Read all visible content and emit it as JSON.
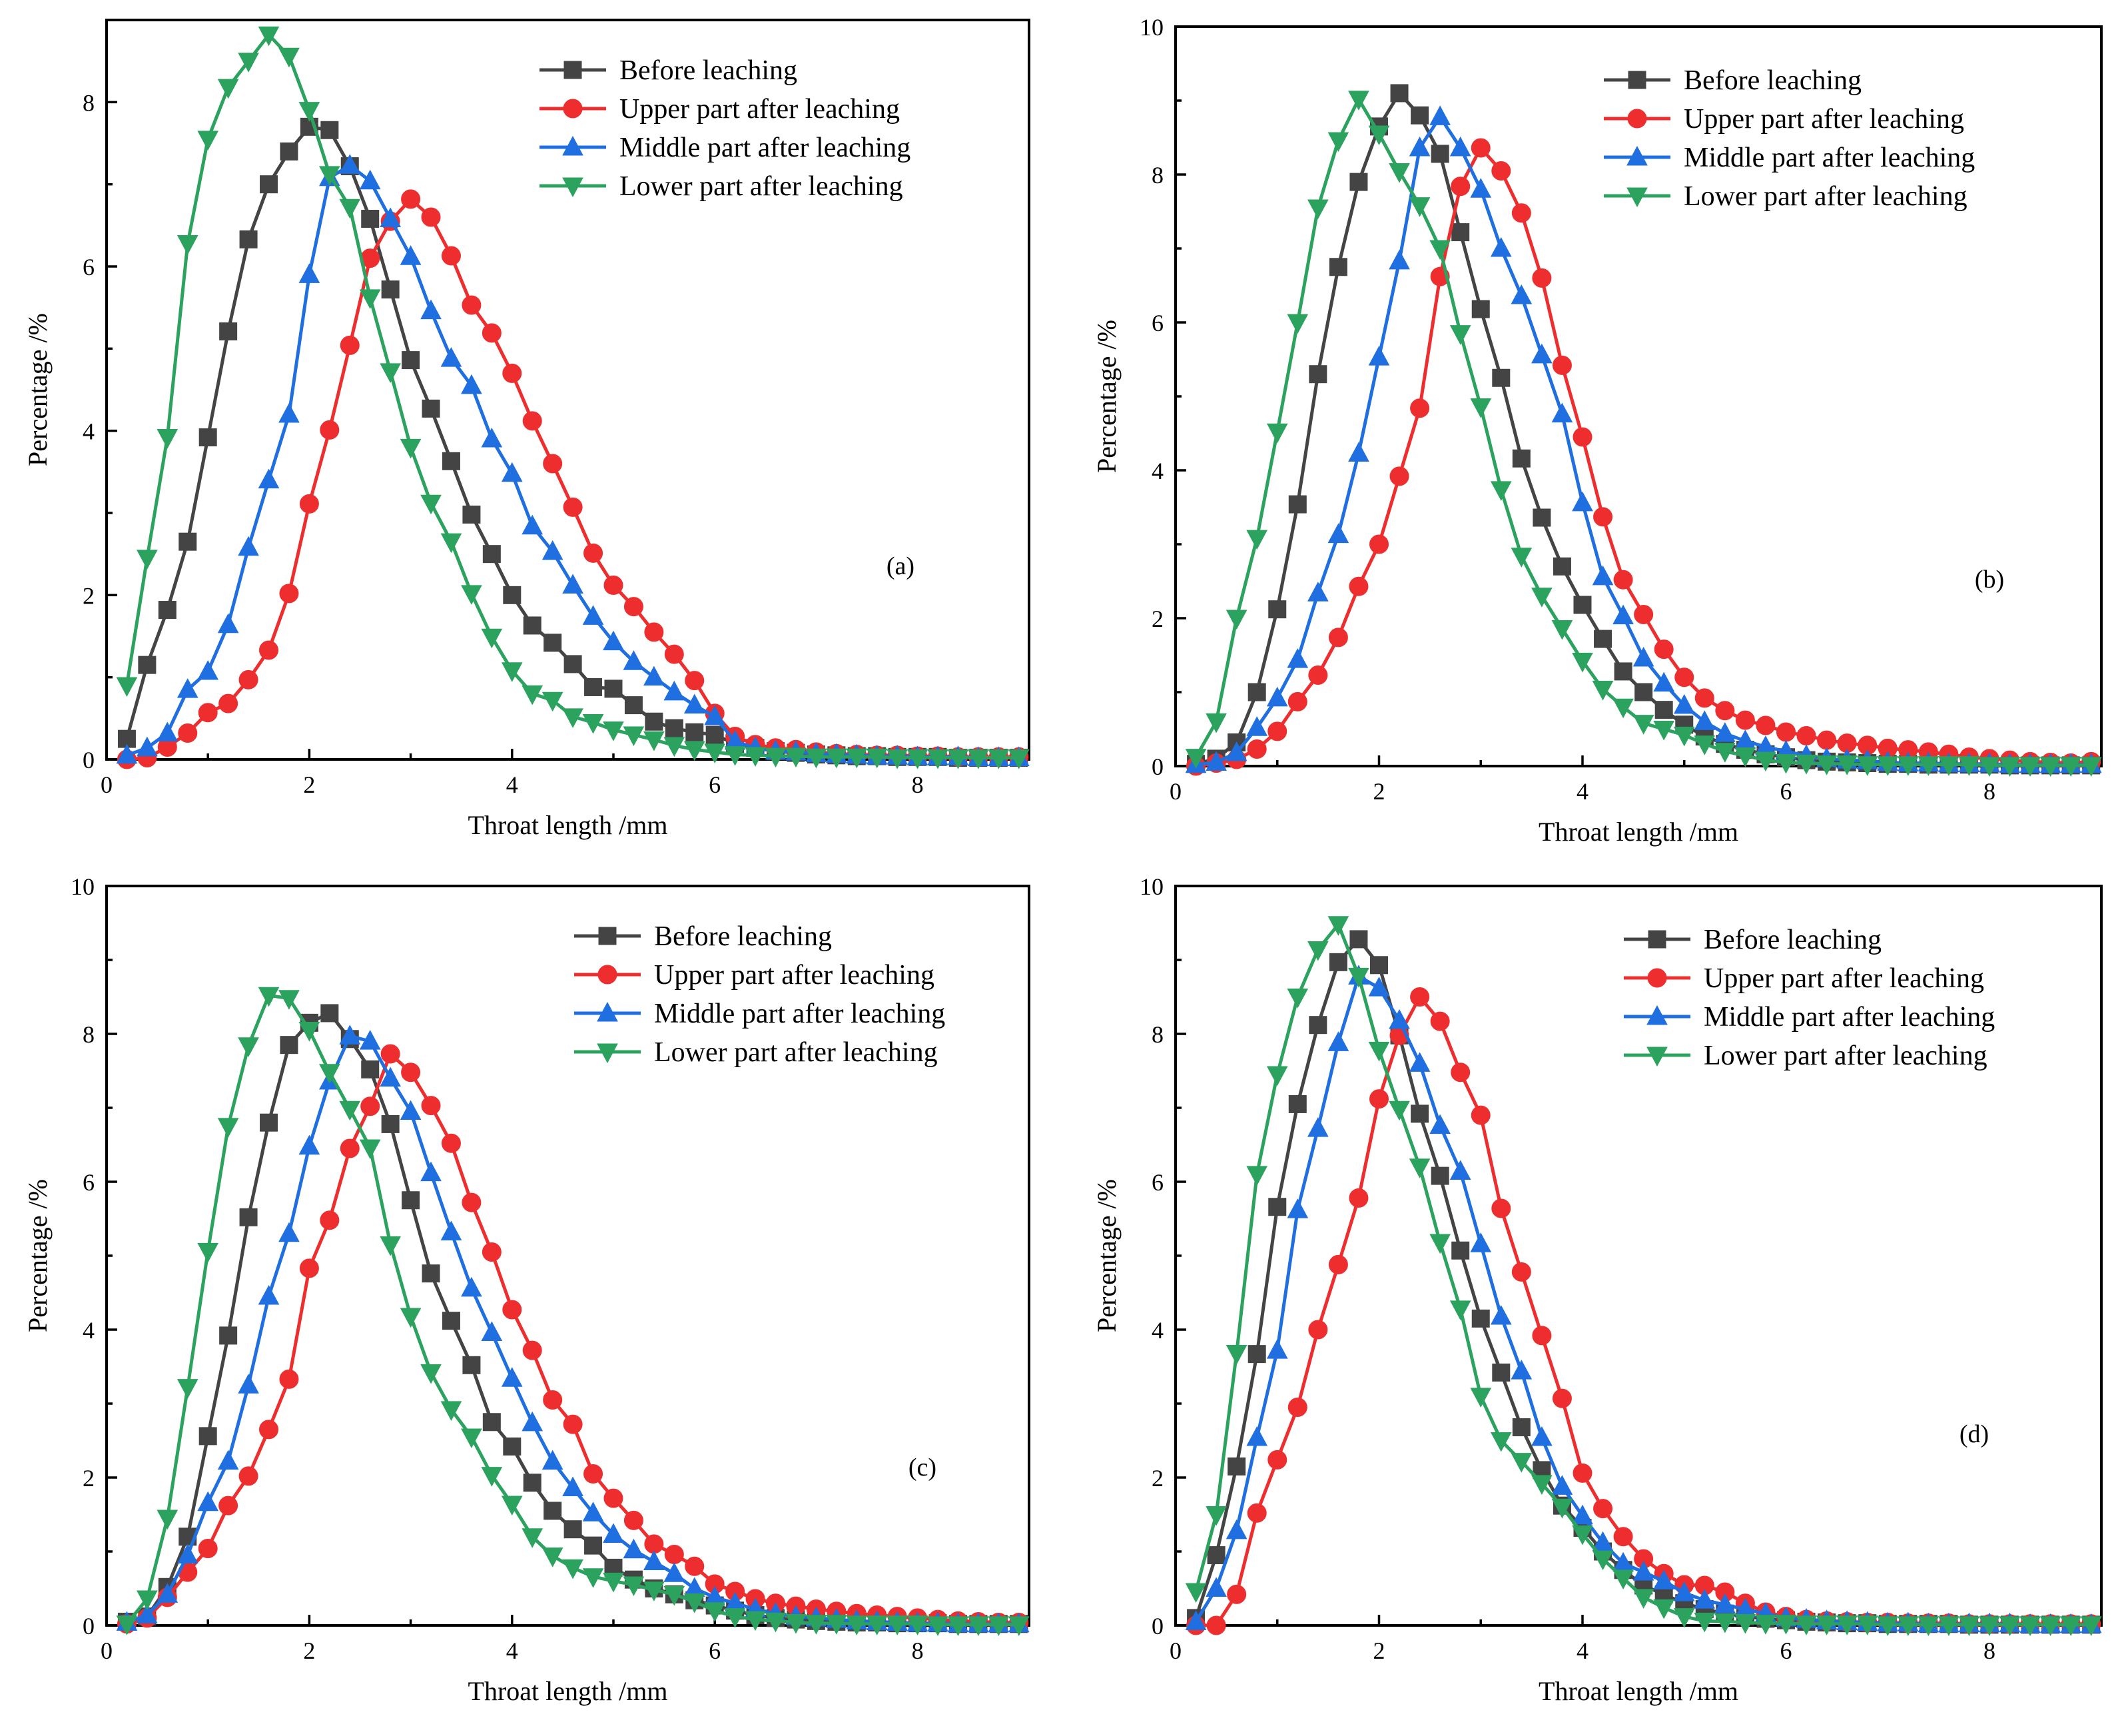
{
  "colors": {
    "Before leaching": "#444444",
    "Upper part after leaching": "#ee2e2e",
    "Middle part after leaching": "#1f6fe0",
    "Lower part after leaching": "#2ba35f"
  },
  "markers": {
    "Before leaching": "square",
    "Upper part after leaching": "circle",
    "Middle part after leaching": "triangle-up",
    "Lower part after leaching": "triangle-down"
  },
  "chart_data": [
    {
      "type": "line",
      "panel_label": "(a)",
      "xlabel": "Throat length /mm",
      "ylabel": "Percentage /%",
      "xlim": [
        0,
        9.1
      ],
      "ylim": [
        0,
        9
      ],
      "xticks": [
        0,
        2,
        4,
        6,
        8
      ],
      "yticks": [
        0,
        2,
        4,
        6,
        8
      ],
      "x": [
        0.2,
        0.4,
        0.6,
        0.8,
        1.0,
        1.2,
        1.4,
        1.6,
        1.8,
        2.0,
        2.2,
        2.4,
        2.6,
        2.8,
        3.0,
        3.2,
        3.4,
        3.6,
        3.8,
        4.0,
        4.2,
        4.4,
        4.6,
        4.8,
        5.0,
        5.2,
        5.4,
        5.6,
        5.8,
        6.0,
        6.2,
        6.4,
        6.6,
        6.8,
        7.0,
        7.2,
        7.4,
        7.6,
        7.8,
        8.0,
        8.2,
        8.4,
        8.6,
        8.8,
        9.0
      ],
      "series": [
        {
          "name": "Before leaching",
          "values": [
            0.25,
            1.15,
            1.82,
            2.65,
            3.92,
            5.21,
            6.33,
            7.0,
            7.4,
            7.7,
            7.66,
            7.22,
            6.58,
            5.72,
            4.86,
            4.27,
            3.63,
            2.98,
            2.5,
            2.0,
            1.63,
            1.42,
            1.16,
            0.88,
            0.86,
            0.66,
            0.46,
            0.38,
            0.33,
            0.3,
            0.19,
            0.14,
            0.1,
            0.08,
            0.06,
            0.05,
            0.04,
            0.04,
            0.03,
            0.03,
            0.03,
            0.02,
            0.02,
            0.02,
            0.02
          ]
        },
        {
          "name": "Upper part after leaching",
          "values": [
            0.0,
            0.02,
            0.15,
            0.32,
            0.57,
            0.68,
            0.97,
            1.33,
            2.02,
            3.11,
            4.01,
            5.04,
            6.1,
            6.55,
            6.82,
            6.6,
            6.13,
            5.53,
            5.19,
            4.7,
            4.12,
            3.6,
            3.07,
            2.51,
            2.12,
            1.86,
            1.55,
            1.28,
            0.96,
            0.56,
            0.28,
            0.18,
            0.14,
            0.12,
            0.09,
            0.07,
            0.06,
            0.05,
            0.05,
            0.04,
            0.04,
            0.03,
            0.03,
            0.03,
            0.03
          ]
        },
        {
          "name": "Middle part after leaching",
          "values": [
            0.05,
            0.14,
            0.32,
            0.85,
            1.07,
            1.64,
            2.58,
            3.4,
            4.2,
            5.9,
            7.08,
            7.23,
            7.04,
            6.58,
            6.12,
            5.46,
            4.88,
            4.55,
            3.9,
            3.48,
            2.84,
            2.53,
            2.12,
            1.74,
            1.43,
            1.19,
            1.0,
            0.82,
            0.66,
            0.52,
            0.22,
            0.14,
            0.1,
            0.09,
            0.07,
            0.06,
            0.05,
            0.04,
            0.04,
            0.03,
            0.03,
            0.03,
            0.02,
            0.02,
            0.02
          ]
        },
        {
          "name": "Lower part after leaching",
          "values": [
            0.9,
            2.45,
            3.92,
            6.28,
            7.55,
            8.18,
            8.5,
            8.82,
            8.56,
            7.9,
            7.12,
            6.72,
            5.62,
            4.72,
            3.8,
            3.12,
            2.65,
            2.02,
            1.49,
            1.08,
            0.8,
            0.72,
            0.52,
            0.45,
            0.36,
            0.3,
            0.24,
            0.17,
            0.12,
            0.09,
            0.06,
            0.05,
            0.04,
            0.04,
            0.03,
            0.03,
            0.03,
            0.03,
            0.02,
            0.02,
            0.02,
            0.02,
            0.02,
            0.02,
            0.02
          ]
        }
      ]
    },
    {
      "type": "line",
      "panel_label": "(b)",
      "xlabel": "Throat length /mm",
      "ylabel": "Percentage /%",
      "xlim": [
        0,
        9.1
      ],
      "ylim": [
        0,
        10
      ],
      "xticks": [
        0,
        2,
        4,
        6,
        8
      ],
      "yticks": [
        0,
        2,
        4,
        6,
        8,
        10
      ],
      "x": [
        0.2,
        0.4,
        0.6,
        0.8,
        1.0,
        1.2,
        1.4,
        1.6,
        1.8,
        2.0,
        2.2,
        2.4,
        2.6,
        2.8,
        3.0,
        3.2,
        3.4,
        3.6,
        3.8,
        4.0,
        4.2,
        4.4,
        4.6,
        4.8,
        5.0,
        5.2,
        5.4,
        5.6,
        5.8,
        6.0,
        6.2,
        6.4,
        6.6,
        6.8,
        7.0,
        7.2,
        7.4,
        7.6,
        7.8,
        8.0,
        8.2,
        8.4,
        8.6,
        8.8,
        9.0
      ],
      "series": [
        {
          "name": "Before leaching",
          "values": [
            0.03,
            0.1,
            0.32,
            1.0,
            2.12,
            3.54,
            5.3,
            6.75,
            7.9,
            8.65,
            9.1,
            8.8,
            8.28,
            7.22,
            6.18,
            5.25,
            4.16,
            3.36,
            2.7,
            2.18,
            1.72,
            1.28,
            1.0,
            0.76,
            0.56,
            0.4,
            0.3,
            0.22,
            0.16,
            0.12,
            0.08,
            0.06,
            0.05,
            0.04,
            0.03,
            0.03,
            0.02,
            0.02,
            0.02,
            0.02,
            0.01,
            0.01,
            0.01,
            0.01,
            0.01
          ]
        },
        {
          "name": "Upper part after leaching",
          "values": [
            0.0,
            0.04,
            0.09,
            0.23,
            0.47,
            0.87,
            1.23,
            1.74,
            2.43,
            3.0,
            3.92,
            4.84,
            6.62,
            7.84,
            8.36,
            8.05,
            7.48,
            6.6,
            5.42,
            4.45,
            3.37,
            2.52,
            2.05,
            1.58,
            1.2,
            0.92,
            0.75,
            0.62,
            0.55,
            0.46,
            0.41,
            0.35,
            0.31,
            0.28,
            0.24,
            0.22,
            0.19,
            0.16,
            0.12,
            0.1,
            0.08,
            0.06,
            0.05,
            0.04,
            0.06
          ]
        },
        {
          "name": "Middle part after leaching",
          "values": [
            0.02,
            0.05,
            0.18,
            0.52,
            0.92,
            1.44,
            2.34,
            3.13,
            4.23,
            5.53,
            6.83,
            8.36,
            8.78,
            8.36,
            7.8,
            7.0,
            6.36,
            5.56,
            4.76,
            3.56,
            2.56,
            2.03,
            1.46,
            1.12,
            0.82,
            0.6,
            0.44,
            0.34,
            0.26,
            0.2,
            0.14,
            0.1,
            0.08,
            0.07,
            0.05,
            0.04,
            0.04,
            0.03,
            0.03,
            0.03,
            0.02,
            0.02,
            0.02,
            0.02,
            0.02
          ]
        },
        {
          "name": "Lower part after leaching",
          "values": [
            0.12,
            0.6,
            2.0,
            3.08,
            4.52,
            6.0,
            7.55,
            8.46,
            9.02,
            8.55,
            8.04,
            7.58,
            7.0,
            5.85,
            4.86,
            3.74,
            2.84,
            2.3,
            1.86,
            1.42,
            1.04,
            0.8,
            0.58,
            0.5,
            0.42,
            0.3,
            0.2,
            0.14,
            0.08,
            0.05,
            0.04,
            0.03,
            0.03,
            0.02,
            0.02,
            0.02,
            0.02,
            0.02,
            0.02,
            0.01,
            0.01,
            0.01,
            0.01,
            0.01,
            0.01
          ]
        }
      ]
    },
    {
      "type": "line",
      "panel_label": "(c)",
      "xlabel": "Throat length /mm",
      "ylabel": "Percentage /%",
      "xlim": [
        0,
        9.1
      ],
      "ylim": [
        0,
        10
      ],
      "xticks": [
        0,
        2,
        4,
        6,
        8
      ],
      "yticks": [
        0,
        2,
        4,
        6,
        8,
        10
      ],
      "x": [
        0.2,
        0.4,
        0.6,
        0.8,
        1.0,
        1.2,
        1.4,
        1.6,
        1.8,
        2.0,
        2.2,
        2.4,
        2.6,
        2.8,
        3.0,
        3.2,
        3.4,
        3.6,
        3.8,
        4.0,
        4.2,
        4.4,
        4.6,
        4.8,
        5.0,
        5.2,
        5.4,
        5.6,
        5.8,
        6.0,
        6.2,
        6.4,
        6.6,
        6.8,
        7.0,
        7.2,
        7.4,
        7.6,
        7.8,
        8.0,
        8.2,
        8.4,
        8.6,
        8.8,
        9.0
      ],
      "series": [
        {
          "name": "Before leaching",
          "values": [
            0.05,
            0.12,
            0.52,
            1.2,
            2.56,
            3.92,
            5.52,
            6.8,
            7.85,
            8.15,
            8.28,
            7.93,
            7.52,
            6.78,
            5.75,
            4.76,
            4.12,
            3.52,
            2.75,
            2.42,
            1.93,
            1.55,
            1.3,
            1.08,
            0.78,
            0.62,
            0.5,
            0.42,
            0.34,
            0.27,
            0.2,
            0.14,
            0.1,
            0.08,
            0.06,
            0.05,
            0.04,
            0.04,
            0.03,
            0.03,
            0.03,
            0.02,
            0.02,
            0.02,
            0.02
          ]
        },
        {
          "name": "Upper part after leaching",
          "values": [
            0.02,
            0.1,
            0.38,
            0.72,
            1.04,
            1.62,
            2.02,
            2.65,
            3.33,
            4.83,
            5.48,
            6.45,
            7.02,
            7.73,
            7.48,
            7.03,
            6.52,
            5.72,
            5.05,
            4.27,
            3.72,
            3.05,
            2.72,
            2.05,
            1.72,
            1.42,
            1.1,
            0.96,
            0.8,
            0.56,
            0.46,
            0.36,
            0.3,
            0.26,
            0.22,
            0.19,
            0.16,
            0.14,
            0.12,
            0.1,
            0.08,
            0.06,
            0.05,
            0.04,
            0.04
          ]
        },
        {
          "name": "Middle part after leaching",
          "values": [
            0.04,
            0.14,
            0.42,
            0.95,
            1.66,
            2.22,
            3.25,
            4.45,
            5.3,
            6.48,
            7.36,
            7.97,
            7.9,
            7.4,
            6.95,
            6.12,
            5.32,
            4.56,
            3.96,
            3.34,
            2.74,
            2.22,
            1.86,
            1.52,
            1.23,
            1.02,
            0.86,
            0.7,
            0.5,
            0.38,
            0.3,
            0.22,
            0.16,
            0.12,
            0.1,
            0.08,
            0.06,
            0.05,
            0.04,
            0.03,
            0.03,
            0.02,
            0.02,
            0.02,
            0.02
          ]
        },
        {
          "name": "Lower part after leaching",
          "values": [
            0.02,
            0.36,
            1.45,
            3.22,
            5.06,
            6.75,
            7.84,
            8.52,
            8.48,
            8.05,
            7.48,
            6.98,
            6.46,
            5.15,
            4.18,
            3.42,
            2.92,
            2.55,
            2.03,
            1.64,
            1.2,
            0.94,
            0.78,
            0.66,
            0.6,
            0.55,
            0.48,
            0.42,
            0.32,
            0.2,
            0.12,
            0.08,
            0.06,
            0.04,
            0.03,
            0.03,
            0.02,
            0.02,
            0.02,
            0.02,
            0.01,
            0.01,
            0.01,
            0.01,
            0.01
          ]
        }
      ]
    },
    {
      "type": "line",
      "panel_label": "(d)",
      "xlabel": "Throat length /mm",
      "ylabel": "Percentage /%",
      "xlim": [
        0,
        9.1
      ],
      "ylim": [
        0,
        10
      ],
      "xticks": [
        0,
        2,
        4,
        6,
        8
      ],
      "yticks": [
        0,
        2,
        4,
        6,
        8,
        10
      ],
      "x": [
        0.2,
        0.4,
        0.6,
        0.8,
        1.0,
        1.2,
        1.4,
        1.6,
        1.8,
        2.0,
        2.2,
        2.4,
        2.6,
        2.8,
        3.0,
        3.2,
        3.4,
        3.6,
        3.8,
        4.0,
        4.2,
        4.4,
        4.6,
        4.8,
        5.0,
        5.2,
        5.4,
        5.6,
        5.8,
        6.0,
        6.2,
        6.4,
        6.6,
        6.8,
        7.0,
        7.2,
        7.4,
        7.6,
        7.8,
        8.0,
        8.2,
        8.4,
        8.6,
        8.8,
        9.0
      ],
      "series": [
        {
          "name": "Before leaching",
          "values": [
            0.1,
            0.95,
            2.15,
            3.67,
            5.66,
            7.05,
            8.12,
            8.97,
            9.28,
            8.93,
            7.98,
            6.92,
            6.08,
            5.07,
            4.15,
            3.42,
            2.68,
            2.1,
            1.62,
            1.32,
            1.0,
            0.75,
            0.54,
            0.42,
            0.3,
            0.22,
            0.16,
            0.12,
            0.09,
            0.07,
            0.05,
            0.04,
            0.03,
            0.03,
            0.02,
            0.02,
            0.02,
            0.02,
            0.01,
            0.01,
            0.01,
            0.01,
            0.01,
            0.01,
            0.01
          ]
        },
        {
          "name": "Upper part after leaching",
          "values": [
            0.0,
            0.0,
            0.42,
            1.52,
            2.24,
            2.95,
            4.0,
            4.88,
            5.78,
            7.12,
            7.98,
            8.5,
            8.17,
            7.48,
            6.9,
            5.64,
            4.78,
            3.92,
            3.07,
            2.06,
            1.58,
            1.2,
            0.9,
            0.7,
            0.55,
            0.54,
            0.45,
            0.3,
            0.18,
            0.12,
            0.08,
            0.06,
            0.05,
            0.04,
            0.04,
            0.03,
            0.03,
            0.03,
            0.02,
            0.02,
            0.02,
            0.02,
            0.02,
            0.02,
            0.02
          ]
        },
        {
          "name": "Middle part after leaching",
          "values": [
            0.05,
            0.5,
            1.28,
            2.54,
            3.72,
            5.62,
            6.72,
            7.88,
            8.78,
            8.62,
            8.18,
            7.6,
            6.76,
            6.14,
            5.16,
            4.18,
            3.44,
            2.54,
            1.88,
            1.48,
            1.12,
            0.84,
            0.72,
            0.6,
            0.44,
            0.34,
            0.28,
            0.22,
            0.16,
            0.1,
            0.08,
            0.06,
            0.05,
            0.04,
            0.03,
            0.03,
            0.02,
            0.02,
            0.02,
            0.02,
            0.02,
            0.01,
            0.01,
            0.01,
            0.01
          ]
        },
        {
          "name": "Lower part after leaching",
          "values": [
            0.46,
            1.5,
            3.68,
            6.1,
            7.45,
            8.5,
            9.14,
            9.48,
            8.78,
            7.78,
            6.98,
            6.2,
            5.18,
            4.28,
            3.1,
            2.5,
            2.22,
            1.92,
            1.6,
            1.24,
            0.9,
            0.64,
            0.38,
            0.24,
            0.12,
            0.06,
            0.05,
            0.04,
            0.03,
            0.03,
            0.02,
            0.02,
            0.02,
            0.02,
            0.01,
            0.01,
            0.01,
            0.01,
            0.01,
            0.01,
            0.01,
            0.01,
            0.01,
            0.01,
            0.01
          ]
        }
      ]
    }
  ]
}
